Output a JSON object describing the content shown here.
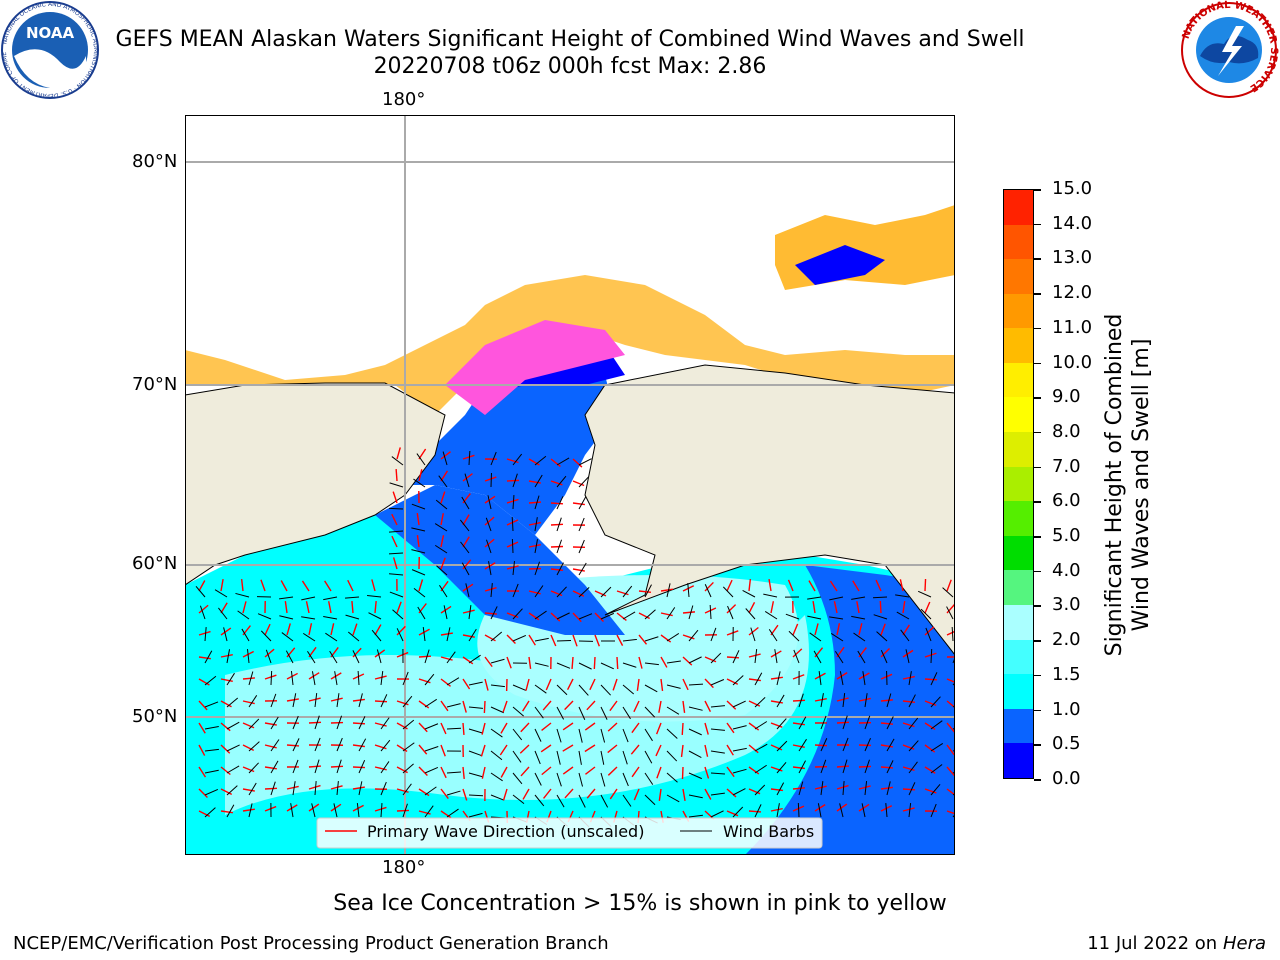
{
  "header": {
    "title_line1": "GEFS MEAN Alaskan Waters Significant Height of Combined Wind Waves and Swell",
    "title_line2": "20220708 t06z 000h fcst   Max: 2.86"
  },
  "logos": {
    "noaa_text": "NOAA",
    "noaa_ring": "NATIONAL OCEANIC AND ATMOSPHERIC ADMINISTRATION · U.S. DEPARTMENT OF COMMERCE",
    "nws_ring": "NATIONAL WEATHER SERVICE"
  },
  "map": {
    "lon_label_top": "180°",
    "lon_label_bottom": "180°",
    "lat_labels": [
      "80°N",
      "70°N",
      "60°N",
      "50°N"
    ],
    "legend": {
      "wave_direction": "Primary Wave Direction (unscaled)",
      "wind_barbs": "Wind Barbs"
    },
    "colors": {
      "land": "#efecdc",
      "wave_dir_arrow": "#ff0000",
      "barb": "#000000"
    }
  },
  "colorbar": {
    "label_line1": "Significant Height of Combined",
    "label_line2": "Wind Waves and Swell [m]",
    "ticks": [
      "0.0",
      "0.5",
      "1.0",
      "1.5",
      "2.0",
      "3.0",
      "4.0",
      "5.0",
      "6.0",
      "7.0",
      "8.0",
      "9.0",
      "10.0",
      "11.0",
      "12.0",
      "13.0",
      "14.0",
      "15.0"
    ],
    "colors": [
      "#0000ff",
      "#0a64ff",
      "#00ffff",
      "#44ffff",
      "#aaffff",
      "#55f57f",
      "#00dd00",
      "#55ee00",
      "#aaee00",
      "#ddee00",
      "#ffff00",
      "#ffee00",
      "#ffbb00",
      "#ff9900",
      "#ff7700",
      "#ff5500",
      "#ff2200"
    ]
  },
  "note": "Sea Ice Concentration > 15% is shown in pink to yellow",
  "footer": {
    "left": "NCEP/EMC/Verification Post Processing Product Generation Branch",
    "right_date": "11 Jul 2022 on ",
    "right_host": "Hera"
  }
}
